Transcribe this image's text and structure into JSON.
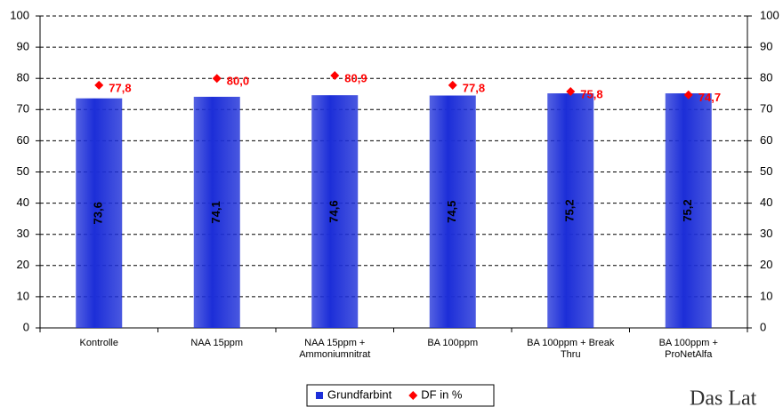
{
  "chart_data": {
    "type": "bar",
    "categories": [
      "Kontrolle",
      "NAA 15ppm",
      "NAA 15ppm + Ammoniumnitrat",
      "BA 100ppm",
      "BA 100ppm + Break Thru",
      "BA 100ppm + ProNetAlfa"
    ],
    "series": [
      {
        "name": "Grundfarbint",
        "type": "bar",
        "color": "#1c2ed8",
        "values": [
          73.6,
          74.1,
          74.6,
          74.5,
          75.2,
          75.2
        ],
        "value_labels": [
          "73,6",
          "74,1",
          "74,6",
          "74,5",
          "75,2",
          "75,2"
        ]
      },
      {
        "name": "DF in %",
        "type": "scatter",
        "axis": "y2",
        "color": "#ff0000",
        "values": [
          77.8,
          80.0,
          80.9,
          77.8,
          75.8,
          74.7
        ],
        "value_labels": [
          "77,8",
          "80,0",
          "80,9",
          "77,8",
          "75,8",
          "74,7"
        ]
      }
    ],
    "ylim": [
      0,
      100
    ],
    "yticks": [
      0,
      10,
      20,
      30,
      40,
      50,
      60,
      70,
      80,
      90,
      100
    ],
    "y2lim": [
      0,
      100
    ],
    "y2ticks": [
      0,
      10,
      20,
      30,
      40,
      50,
      60,
      70,
      80,
      90,
      100
    ],
    "grid": true,
    "legend": "bottom"
  },
  "logo_text": "Das Lat"
}
